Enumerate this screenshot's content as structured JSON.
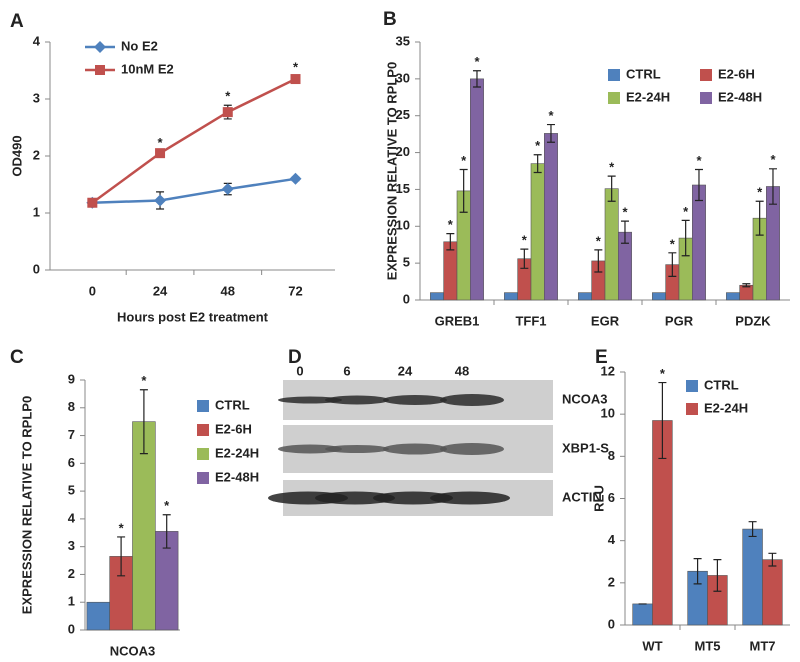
{
  "chart_data": [
    {
      "type": "line",
      "panel": "A",
      "xlabel": "Hours post E2 treatment",
      "ylabel": "OD490",
      "x": [
        0,
        24,
        48,
        72
      ],
      "xlim": [
        -15,
        86
      ],
      "xticks": [
        0,
        24,
        48,
        72
      ],
      "ylim": [
        0,
        4
      ],
      "yticks": [
        0,
        1,
        2,
        3,
        4
      ],
      "legend": "upper left",
      "series": [
        {
          "name": "No E2",
          "color": "#4f81bd",
          "marker": "diamond",
          "values": [
            1.18,
            1.22,
            1.42,
            1.6
          ],
          "errors": [
            0.05,
            0.15,
            0.1,
            0.03
          ]
        },
        {
          "name": "10nM E2",
          "color": "#c0504d",
          "marker": "square",
          "values": [
            1.18,
            2.05,
            2.77,
            3.35
          ],
          "errors": [
            0.05,
            0.03,
            0.12,
            0.05
          ],
          "significance": [
            null,
            "*",
            "*",
            "*"
          ]
        }
      ]
    },
    {
      "type": "bar",
      "panel": "B",
      "ylabel": "EXPRESSION  RELATIVE TO RPLP0",
      "categories": [
        "GREB1",
        "TFF1",
        "EGR",
        "PGR",
        "PDZK"
      ],
      "ylim": [
        0,
        35
      ],
      "yticks": [
        0,
        5,
        10,
        15,
        20,
        25,
        30,
        35
      ],
      "legend": "upper right",
      "series": [
        {
          "name": "CTRL",
          "color": "#4f81bd",
          "values": [
            1,
            1,
            1,
            1,
            1
          ]
        },
        {
          "name": "E2-6H",
          "color": "#c0504d",
          "values": [
            7.9,
            5.6,
            5.3,
            4.8,
            2.0
          ],
          "errors": [
            1.1,
            1.3,
            1.5,
            1.6,
            0.2
          ],
          "significance": [
            "*",
            "*",
            "*",
            "*",
            null
          ]
        },
        {
          "name": "E2-24H",
          "color": "#9bbb59",
          "values": [
            14.8,
            18.5,
            15.1,
            8.4,
            11.1
          ],
          "errors": [
            2.9,
            1.2,
            1.7,
            2.4,
            2.3
          ],
          "significance": [
            "*",
            "*",
            "*",
            "*",
            "*"
          ]
        },
        {
          "name": "E2-48H",
          "color": "#8064a2",
          "values": [
            30,
            22.6,
            9.2,
            15.6,
            15.4
          ],
          "errors": [
            1.1,
            1.2,
            1.5,
            2.1,
            2.4
          ],
          "significance": [
            "*",
            "*",
            "*",
            "*",
            "*"
          ]
        }
      ]
    },
    {
      "type": "bar",
      "panel": "C",
      "ylabel": "EXPRESSION  RELATIVE TO RPLP0",
      "categories": [
        "NCOA3"
      ],
      "ylim": [
        0,
        9
      ],
      "yticks": [
        0,
        1,
        2,
        3,
        4,
        5,
        6,
        7,
        8,
        9
      ],
      "legend": "right",
      "series": [
        {
          "name": "CTRL",
          "color": "#4f81bd",
          "values": [
            1
          ]
        },
        {
          "name": "E2-6H",
          "color": "#c0504d",
          "values": [
            2.65
          ],
          "errors": [
            0.7
          ],
          "significance": [
            "*"
          ]
        },
        {
          "name": "E2-24H",
          "color": "#9bbb59",
          "values": [
            7.5
          ],
          "errors": [
            1.15
          ],
          "significance": [
            "*"
          ]
        },
        {
          "name": "E2-48H",
          "color": "#8064a2",
          "values": [
            3.55
          ],
          "errors": [
            0.6
          ],
          "significance": [
            "*"
          ]
        }
      ]
    },
    {
      "type": "blot",
      "panel": "D",
      "lanes": [
        "0",
        "6",
        "24",
        "48"
      ],
      "bands": [
        "NCOA3",
        "XBP1-S",
        "ACTIN"
      ]
    },
    {
      "type": "bar",
      "panel": "E",
      "ylabel": "RLU",
      "categories": [
        "WT",
        "MT5",
        "MT7"
      ],
      "ylim": [
        0,
        12
      ],
      "yticks": [
        0,
        2,
        4,
        6,
        8,
        10,
        12
      ],
      "legend": "upper right",
      "series": [
        {
          "name": "CTRL",
          "color": "#4f81bd",
          "values": [
            1,
            2.55,
            4.55
          ],
          "errors": [
            0,
            0.6,
            0.35
          ]
        },
        {
          "name": "E2-24H",
          "color": "#c0504d",
          "values": [
            9.7,
            2.35,
            3.1
          ],
          "errors": [
            1.8,
            0.75,
            0.3
          ],
          "significance": [
            "*",
            null,
            null
          ]
        }
      ]
    }
  ]
}
